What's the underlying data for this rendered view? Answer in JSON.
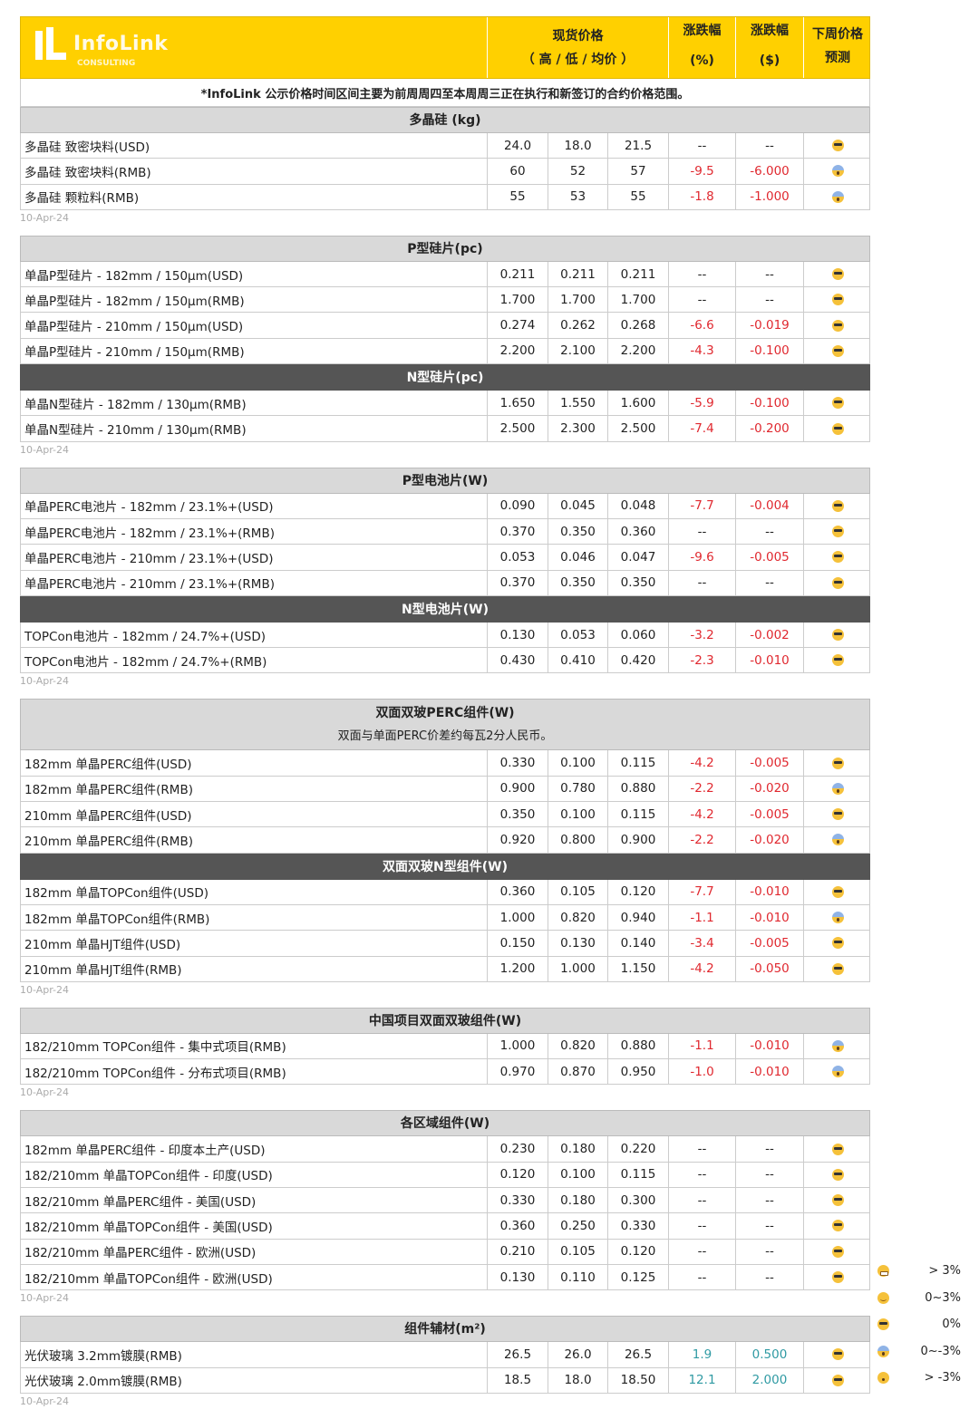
{
  "header": {
    "logo_text": "InfoLink",
    "logo_sub": "CONSULTING",
    "spot_price": "现货价格",
    "spot_sub": "（ 高 / 低 / 均价 ）",
    "chg_pct": "涨跌幅",
    "chg_pct_unit": "(%)",
    "chg_abs": "涨跌幅",
    "chg_abs_unit": "($)",
    "forecast": "下周价格",
    "forecast2": "预测"
  },
  "colors": {
    "brand_yellow": "#ffd000",
    "negative": "#e0282f",
    "positive": "#2f9aa3",
    "section_dark": "#555555"
  },
  "note": "*InfoLink 公示价格时间区间主要为前周周四至本周周三正在执行和新签订的合约价格范围。",
  "sections": [
    {
      "blocks": [
        {
          "title": "多晶硅 (kg)",
          "rows": [
            [
              "多晶硅 致密块料(USD)",
              "24.0",
              "18.0",
              "21.5",
              "--",
              "--",
              "cool"
            ],
            [
              "多晶硅 致密块料(RMB)",
              "60",
              "52",
              "57",
              "-9.5",
              "-6.000",
              "scream"
            ],
            [
              "多晶硅 颗粒料(RMB)",
              "55",
              "53",
              "55",
              "-1.8",
              "-1.000",
              "scream"
            ]
          ]
        }
      ],
      "date": "10-Apr-24"
    },
    {
      "blocks": [
        {
          "title": "P型硅片(pc)",
          "rows": [
            [
              "单晶P型硅片 - 182mm / 150μm(USD)",
              "0.211",
              "0.211",
              "0.211",
              "--",
              "--",
              "cool"
            ],
            [
              "单晶P型硅片 - 182mm / 150μm(RMB)",
              "1.700",
              "1.700",
              "1.700",
              "--",
              "--",
              "cool"
            ],
            [
              "单晶P型硅片 - 210mm / 150μm(USD)",
              "0.274",
              "0.262",
              "0.268",
              "-6.6",
              "-0.019",
              "cool"
            ],
            [
              "单晶P型硅片 - 210mm / 150μm(RMB)",
              "2.200",
              "2.100",
              "2.200",
              "-4.3",
              "-0.100",
              "cool"
            ]
          ]
        },
        {
          "title": "N型硅片(pc)",
          "dark": true,
          "rows": [
            [
              "单晶N型硅片 - 182mm / 130μm(RMB)",
              "1.650",
              "1.550",
              "1.600",
              "-5.9",
              "-0.100",
              "cool"
            ],
            [
              "单晶N型硅片 - 210mm / 130μm(RMB)",
              "2.500",
              "2.300",
              "2.500",
              "-7.4",
              "-0.200",
              "cool"
            ]
          ]
        }
      ],
      "date": "10-Apr-24"
    },
    {
      "blocks": [
        {
          "title": "P型电池片(W)",
          "rows": [
            [
              "单晶PERC电池片 - 182mm / 23.1%+(USD)",
              "0.090",
              "0.045",
              "0.048",
              "-7.7",
              "-0.004",
              "cool"
            ],
            [
              "单晶PERC电池片 - 182mm / 23.1%+(RMB)",
              "0.370",
              "0.350",
              "0.360",
              "--",
              "--",
              "cool"
            ],
            [
              "单晶PERC电池片 - 210mm / 23.1%+(USD)",
              "0.053",
              "0.046",
              "0.047",
              "-9.6",
              "-0.005",
              "cool"
            ],
            [
              "单晶PERC电池片 - 210mm / 23.1%+(RMB)",
              "0.370",
              "0.350",
              "0.350",
              "--",
              "--",
              "cool"
            ]
          ]
        },
        {
          "title": "N型电池片(W)",
          "dark": true,
          "rows": [
            [
              "TOPCon电池片 - 182mm / 24.7%+(USD)",
              "0.130",
              "0.053",
              "0.060",
              "-3.2",
              "-0.002",
              "cool"
            ],
            [
              "TOPCon电池片 - 182mm / 24.7%+(RMB)",
              "0.430",
              "0.410",
              "0.420",
              "-2.3",
              "-0.010",
              "cool"
            ]
          ]
        }
      ],
      "date": "10-Apr-24"
    },
    {
      "blocks": [
        {
          "title": "双面双玻PERC组件(W)",
          "subtitle": "双面与单面PERC价差约每瓦2分人民币。",
          "rows": [
            [
              "182mm 单晶PERC组件(USD)",
              "0.330",
              "0.100",
              "0.115",
              "-4.2",
              "-0.005",
              "cool"
            ],
            [
              "182mm 单晶PERC组件(RMB)",
              "0.900",
              "0.780",
              "0.880",
              "-2.2",
              "-0.020",
              "scream"
            ],
            [
              "210mm 单晶PERC组件(USD)",
              "0.350",
              "0.100",
              "0.115",
              "-4.2",
              "-0.005",
              "cool"
            ],
            [
              "210mm 单晶PERC组件(RMB)",
              "0.920",
              "0.800",
              "0.900",
              "-2.2",
              "-0.020",
              "scream"
            ]
          ]
        },
        {
          "title": "双面双玻N型组件(W)",
          "dark": true,
          "rows": [
            [
              "182mm 单晶TOPCon组件(USD)",
              "0.360",
              "0.105",
              "0.120",
              "-7.7",
              "-0.010",
              "cool"
            ],
            [
              "182mm 单晶TOPCon组件(RMB)",
              "1.000",
              "0.820",
              "0.940",
              "-1.1",
              "-0.010",
              "scream"
            ],
            [
              "210mm 单晶HJT组件(USD)",
              "0.150",
              "0.130",
              "0.140",
              "-3.4",
              "-0.005",
              "cool"
            ],
            [
              "210mm 单晶HJT组件(RMB)",
              "1.200",
              "1.000",
              "1.150",
              "-4.2",
              "-0.050",
              "cool"
            ]
          ]
        }
      ],
      "date": "10-Apr-24"
    },
    {
      "blocks": [
        {
          "title": "中国项目双面双玻组件(W)",
          "rows": [
            [
              "182/210mm TOPCon组件 - 集中式项目(RMB)",
              "1.000",
              "0.820",
              "0.880",
              "-1.1",
              "-0.010",
              "scream"
            ],
            [
              "182/210mm TOPCon组件 - 分布式项目(RMB)",
              "0.970",
              "0.870",
              "0.950",
              "-1.0",
              "-0.010",
              "scream"
            ]
          ]
        }
      ],
      "date": "10-Apr-24"
    },
    {
      "blocks": [
        {
          "title": "各区域组件(W)",
          "rows": [
            [
              "182mm 单晶PERC组件 - 印度本土产(USD)",
              "0.230",
              "0.180",
              "0.220",
              "--",
              "--",
              "cool"
            ],
            [
              "182/210mm 单晶TOPCon组件 - 印度(USD)",
              "0.120",
              "0.100",
              "0.115",
              "--",
              "--",
              "cool"
            ],
            [
              "182/210mm 单晶PERC组件 - 美国(USD)",
              "0.330",
              "0.180",
              "0.300",
              "--",
              "--",
              "cool"
            ],
            [
              "182/210mm 单晶TOPCon组件 - 美国(USD)",
              "0.360",
              "0.250",
              "0.330",
              "--",
              "--",
              "cool"
            ],
            [
              "182/210mm 单晶PERC组件 - 欧洲(USD)",
              "0.210",
              "0.105",
              "0.120",
              "--",
              "--",
              "cool"
            ],
            [
              "182/210mm 单晶TOPCon组件 - 欧洲(USD)",
              "0.130",
              "0.110",
              "0.125",
              "--",
              "--",
              "cool"
            ]
          ]
        }
      ],
      "date": "10-Apr-24"
    },
    {
      "blocks": [
        {
          "title": "组件辅材(m²)",
          "rows": [
            [
              "光伏玻璃 3.2mm镀膜(RMB)",
              "26.5",
              "26.0",
              "26.5",
              "1.9",
              "0.500",
              "cool"
            ],
            [
              "光伏玻璃 2.0mm镀膜(RMB)",
              "18.5",
              "18.0",
              "18.50",
              "12.1",
              "2.000",
              "cool"
            ]
          ]
        }
      ],
      "date": "10-Apr-24"
    }
  ],
  "legend": [
    {
      "icon": "grin",
      "label": "> 3%"
    },
    {
      "icon": "smile",
      "label": "0~3%"
    },
    {
      "icon": "cool",
      "label": "0%"
    },
    {
      "icon": "scream",
      "label": "0~-3%"
    },
    {
      "icon": "astonished",
      "label": "> -3%"
    }
  ]
}
